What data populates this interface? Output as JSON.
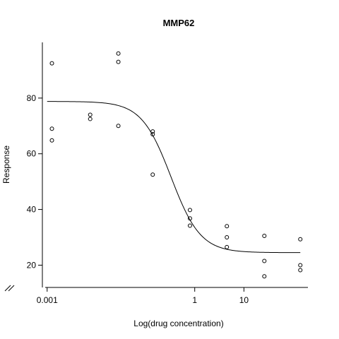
{
  "chart_data": {
    "type": "scatter",
    "title": "MMP62",
    "xlabel": "Log(drug concentration)",
    "ylabel": "Response",
    "x_scale": "log10",
    "xlim": [
      0.0008,
      200
    ],
    "ylim": [
      12,
      100
    ],
    "x_ticks": [
      0.001,
      1,
      10
    ],
    "x_tick_labels": [
      "0.001",
      "1",
      "10"
    ],
    "y_ticks": [
      20,
      40,
      60,
      80
    ],
    "y_tick_labels": [
      "20",
      "40",
      "60",
      "80"
    ],
    "axis_break": true,
    "points": [
      {
        "x": 0.00125,
        "y": 92.5
      },
      {
        "x": 0.00125,
        "y": 69.0
      },
      {
        "x": 0.00125,
        "y": 64.8
      },
      {
        "x": 0.0075,
        "y": 74.0
      },
      {
        "x": 0.0075,
        "y": 72.5
      },
      {
        "x": 0.028,
        "y": 96.0
      },
      {
        "x": 0.028,
        "y": 93.0
      },
      {
        "x": 0.028,
        "y": 70.0
      },
      {
        "x": 0.14,
        "y": 68.0
      },
      {
        "x": 0.14,
        "y": 67.0
      },
      {
        "x": 0.14,
        "y": 52.5
      },
      {
        "x": 0.8,
        "y": 39.8
      },
      {
        "x": 0.8,
        "y": 36.8
      },
      {
        "x": 0.8,
        "y": 34.2
      },
      {
        "x": 4.5,
        "y": 34.0
      },
      {
        "x": 4.5,
        "y": 30.0
      },
      {
        "x": 4.5,
        "y": 26.5
      },
      {
        "x": 26,
        "y": 30.5
      },
      {
        "x": 26,
        "y": 21.5
      },
      {
        "x": 26,
        "y": 16.0
      },
      {
        "x": 140,
        "y": 29.3
      },
      {
        "x": 140,
        "y": 20.0
      },
      {
        "x": 140,
        "y": 18.2
      }
    ],
    "fit": {
      "model": "four-parameter logistic",
      "top": 78.8,
      "bottom": 24.5,
      "ec50": 0.33,
      "hill": 1.45,
      "x_range": [
        0.001,
        140
      ]
    }
  }
}
